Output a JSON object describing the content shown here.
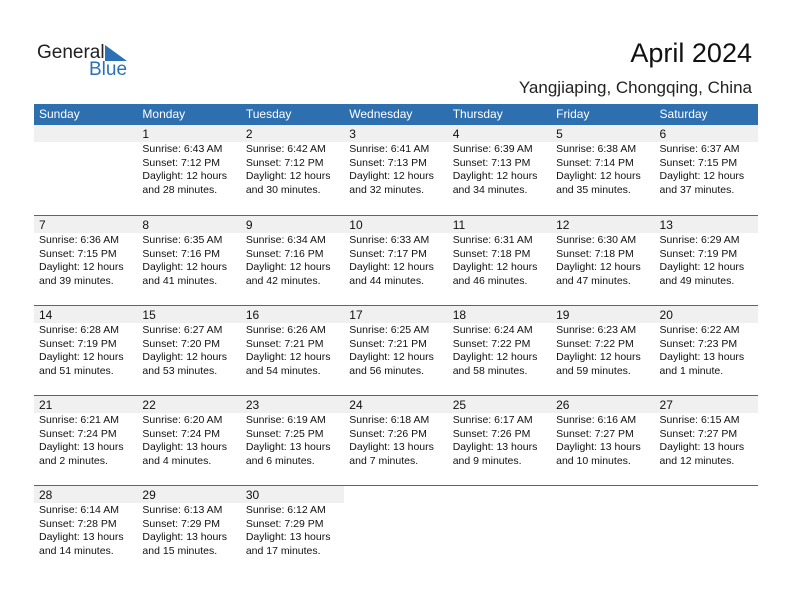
{
  "logo": {
    "text1": "General",
    "text2": "Blue"
  },
  "title": "April 2024",
  "location": "Yangjiaping, Chongqing, China",
  "colors": {
    "accent": "#2e6fb0",
    "date_bar": "#f0f0f0"
  },
  "weekdays": [
    "Sunday",
    "Monday",
    "Tuesday",
    "Wednesday",
    "Thursday",
    "Friday",
    "Saturday"
  ],
  "weeks": [
    [
      null,
      {
        "day": "1",
        "sunrise": "Sunrise: 6:43 AM",
        "sunset": "Sunset: 7:12 PM",
        "daylight": "Daylight: 12 hours",
        "minutes": "and 28 minutes."
      },
      {
        "day": "2",
        "sunrise": "Sunrise: 6:42 AM",
        "sunset": "Sunset: 7:12 PM",
        "daylight": "Daylight: 12 hours",
        "minutes": "and 30 minutes."
      },
      {
        "day": "3",
        "sunrise": "Sunrise: 6:41 AM",
        "sunset": "Sunset: 7:13 PM",
        "daylight": "Daylight: 12 hours",
        "minutes": "and 32 minutes."
      },
      {
        "day": "4",
        "sunrise": "Sunrise: 6:39 AM",
        "sunset": "Sunset: 7:13 PM",
        "daylight": "Daylight: 12 hours",
        "minutes": "and 34 minutes."
      },
      {
        "day": "5",
        "sunrise": "Sunrise: 6:38 AM",
        "sunset": "Sunset: 7:14 PM",
        "daylight": "Daylight: 12 hours",
        "minutes": "and 35 minutes."
      },
      {
        "day": "6",
        "sunrise": "Sunrise: 6:37 AM",
        "sunset": "Sunset: 7:15 PM",
        "daylight": "Daylight: 12 hours",
        "minutes": "and 37 minutes."
      }
    ],
    [
      {
        "day": "7",
        "sunrise": "Sunrise: 6:36 AM",
        "sunset": "Sunset: 7:15 PM",
        "daylight": "Daylight: 12 hours",
        "minutes": "and 39 minutes."
      },
      {
        "day": "8",
        "sunrise": "Sunrise: 6:35 AM",
        "sunset": "Sunset: 7:16 PM",
        "daylight": "Daylight: 12 hours",
        "minutes": "and 41 minutes."
      },
      {
        "day": "9",
        "sunrise": "Sunrise: 6:34 AM",
        "sunset": "Sunset: 7:16 PM",
        "daylight": "Daylight: 12 hours",
        "minutes": "and 42 minutes."
      },
      {
        "day": "10",
        "sunrise": "Sunrise: 6:33 AM",
        "sunset": "Sunset: 7:17 PM",
        "daylight": "Daylight: 12 hours",
        "minutes": "and 44 minutes."
      },
      {
        "day": "11",
        "sunrise": "Sunrise: 6:31 AM",
        "sunset": "Sunset: 7:18 PM",
        "daylight": "Daylight: 12 hours",
        "minutes": "and 46 minutes."
      },
      {
        "day": "12",
        "sunrise": "Sunrise: 6:30 AM",
        "sunset": "Sunset: 7:18 PM",
        "daylight": "Daylight: 12 hours",
        "minutes": "and 47 minutes."
      },
      {
        "day": "13",
        "sunrise": "Sunrise: 6:29 AM",
        "sunset": "Sunset: 7:19 PM",
        "daylight": "Daylight: 12 hours",
        "minutes": "and 49 minutes."
      }
    ],
    [
      {
        "day": "14",
        "sunrise": "Sunrise: 6:28 AM",
        "sunset": "Sunset: 7:19 PM",
        "daylight": "Daylight: 12 hours",
        "minutes": "and 51 minutes."
      },
      {
        "day": "15",
        "sunrise": "Sunrise: 6:27 AM",
        "sunset": "Sunset: 7:20 PM",
        "daylight": "Daylight: 12 hours",
        "minutes": "and 53 minutes."
      },
      {
        "day": "16",
        "sunrise": "Sunrise: 6:26 AM",
        "sunset": "Sunset: 7:21 PM",
        "daylight": "Daylight: 12 hours",
        "minutes": "and 54 minutes."
      },
      {
        "day": "17",
        "sunrise": "Sunrise: 6:25 AM",
        "sunset": "Sunset: 7:21 PM",
        "daylight": "Daylight: 12 hours",
        "minutes": "and 56 minutes."
      },
      {
        "day": "18",
        "sunrise": "Sunrise: 6:24 AM",
        "sunset": "Sunset: 7:22 PM",
        "daylight": "Daylight: 12 hours",
        "minutes": "and 58 minutes."
      },
      {
        "day": "19",
        "sunrise": "Sunrise: 6:23 AM",
        "sunset": "Sunset: 7:22 PM",
        "daylight": "Daylight: 12 hours",
        "minutes": "and 59 minutes."
      },
      {
        "day": "20",
        "sunrise": "Sunrise: 6:22 AM",
        "sunset": "Sunset: 7:23 PM",
        "daylight": "Daylight: 13 hours",
        "minutes": "and 1 minute."
      }
    ],
    [
      {
        "day": "21",
        "sunrise": "Sunrise: 6:21 AM",
        "sunset": "Sunset: 7:24 PM",
        "daylight": "Daylight: 13 hours",
        "minutes": "and 2 minutes."
      },
      {
        "day": "22",
        "sunrise": "Sunrise: 6:20 AM",
        "sunset": "Sunset: 7:24 PM",
        "daylight": "Daylight: 13 hours",
        "minutes": "and 4 minutes."
      },
      {
        "day": "23",
        "sunrise": "Sunrise: 6:19 AM",
        "sunset": "Sunset: 7:25 PM",
        "daylight": "Daylight: 13 hours",
        "minutes": "and 6 minutes."
      },
      {
        "day": "24",
        "sunrise": "Sunrise: 6:18 AM",
        "sunset": "Sunset: 7:26 PM",
        "daylight": "Daylight: 13 hours",
        "minutes": "and 7 minutes."
      },
      {
        "day": "25",
        "sunrise": "Sunrise: 6:17 AM",
        "sunset": "Sunset: 7:26 PM",
        "daylight": "Daylight: 13 hours",
        "minutes": "and 9 minutes."
      },
      {
        "day": "26",
        "sunrise": "Sunrise: 6:16 AM",
        "sunset": "Sunset: 7:27 PM",
        "daylight": "Daylight: 13 hours",
        "minutes": "and 10 minutes."
      },
      {
        "day": "27",
        "sunrise": "Sunrise: 6:15 AM",
        "sunset": "Sunset: 7:27 PM",
        "daylight": "Daylight: 13 hours",
        "minutes": "and 12 minutes."
      }
    ],
    [
      {
        "day": "28",
        "sunrise": "Sunrise: 6:14 AM",
        "sunset": "Sunset: 7:28 PM",
        "daylight": "Daylight: 13 hours",
        "minutes": "and 14 minutes."
      },
      {
        "day": "29",
        "sunrise": "Sunrise: 6:13 AM",
        "sunset": "Sunset: 7:29 PM",
        "daylight": "Daylight: 13 hours",
        "minutes": "and 15 minutes."
      },
      {
        "day": "30",
        "sunrise": "Sunrise: 6:12 AM",
        "sunset": "Sunset: 7:29 PM",
        "daylight": "Daylight: 13 hours",
        "minutes": "and 17 minutes."
      },
      null,
      null,
      null,
      null
    ]
  ]
}
